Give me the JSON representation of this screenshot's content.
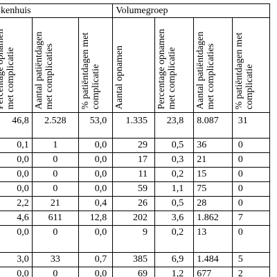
{
  "header": {
    "group_left": "kenhuis",
    "group_right": "Volumegroep"
  },
  "columns": [
    "Percentage opnamen met complicatie",
    "Aantal patiëntdagen met complicaties",
    "% patiëntdagen met complicatie",
    "Aantal opnamen",
    "Percentage opnamen met complicatie",
    "Aantal patiëntdagen met complicaties",
    "% patiëntdagen met complicatie"
  ],
  "rows": [
    [
      "46,8",
      "2.528",
      "53,0",
      "1.335",
      "23,8",
      "8.087",
      "31"
    ],
    [
      "0,1",
      "1",
      "0,0",
      "29",
      "0,5",
      "36",
      "0"
    ],
    [
      "0,0",
      "0",
      "0,0",
      "17",
      "0,3",
      "21",
      "0"
    ],
    [
      "0,0",
      "0",
      "0,0",
      "11",
      "0,2",
      "15",
      "0"
    ],
    [
      "0,0",
      "0",
      "0,0",
      "59",
      "1,1",
      "75",
      "0"
    ],
    [
      "2,2",
      "21",
      "0,4",
      "26",
      "0,5",
      "28",
      "0"
    ],
    [
      "4,6",
      "611",
      "12,8",
      "202",
      "3,6",
      "1.862",
      "7"
    ],
    [
      "0,0",
      "0",
      "0,0",
      "9",
      "0,2",
      "13",
      "0"
    ],
    [
      "3,0",
      "33",
      "0,7",
      "385",
      "6,9",
      "1.484",
      "5"
    ],
    [
      "0,0",
      "0",
      "0,0",
      "69",
      "1,2",
      "677",
      "2"
    ]
  ]
}
